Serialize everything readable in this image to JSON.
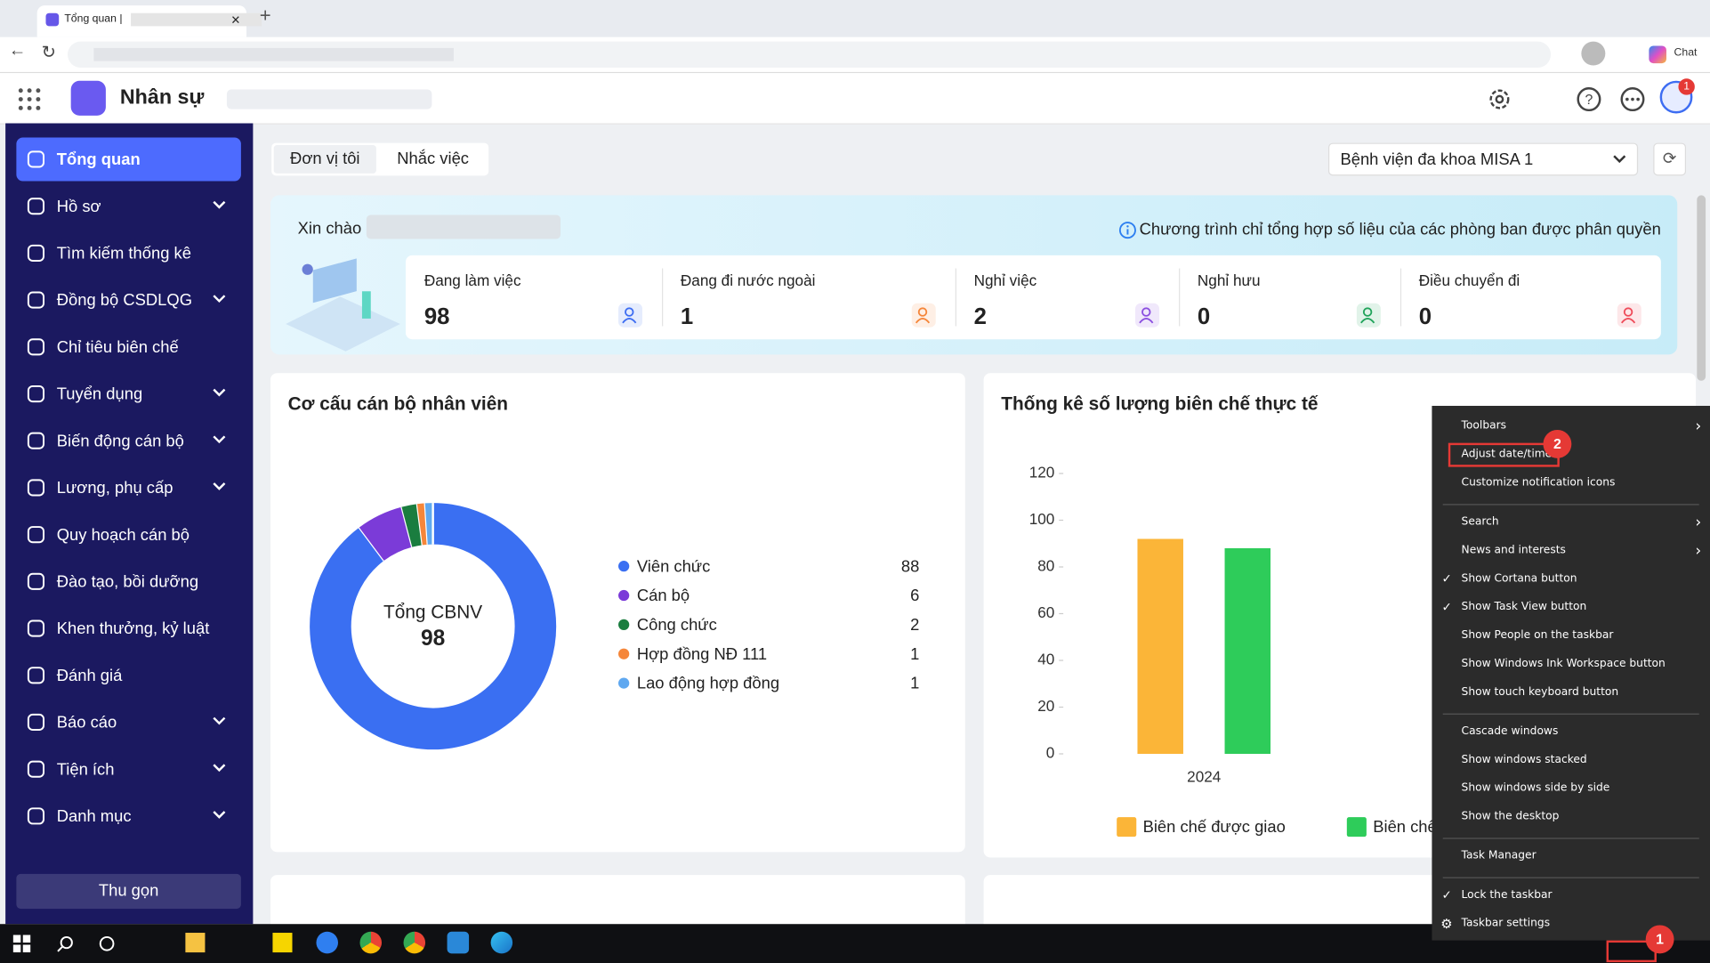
{
  "browser": {
    "tab_title": "Tổng quan |",
    "chat": "Chat"
  },
  "app": {
    "name": "Nhân sự",
    "notification_count": 1
  },
  "sidebar": {
    "items": [
      {
        "label": "Tổng quan",
        "submenu": false,
        "active": true
      },
      {
        "label": "Hồ sơ",
        "submenu": true
      },
      {
        "label": "Tìm kiếm thống kê",
        "submenu": false
      },
      {
        "label": "Đồng bộ CSDLQG",
        "submenu": true
      },
      {
        "label": "Chỉ tiêu biên chế",
        "submenu": false
      },
      {
        "label": "Tuyển dụng",
        "submenu": true
      },
      {
        "label": "Biến động cán bộ",
        "submenu": true
      },
      {
        "label": "Lương, phụ cấp",
        "submenu": true
      },
      {
        "label": "Quy hoạch cán bộ",
        "submenu": false
      },
      {
        "label": "Đào tạo, bồi dưỡng",
        "submenu": false
      },
      {
        "label": "Khen thưởng, kỷ luật",
        "submenu": false
      },
      {
        "label": "Đánh giá",
        "submenu": false
      },
      {
        "label": "Báo cáo",
        "submenu": true
      },
      {
        "label": "Tiện ích",
        "submenu": true
      },
      {
        "label": "Danh mục",
        "submenu": true
      }
    ],
    "collapse": "Thu gọn"
  },
  "tabs": [
    "Đơn vị tôi",
    "Nhắc việc"
  ],
  "unit_select": "Bệnh viện đa khoa MISA 1",
  "greeting": "Xin chào",
  "notice": "Chương trình chỉ tổng hợp số liệu của các phòng ban được phân quyền",
  "stats": [
    {
      "label": "Đang làm việc",
      "value": 98,
      "color": "#3d6df2"
    },
    {
      "label": "Đang đi nước ngoài",
      "value": 1,
      "color": "#f5863a"
    },
    {
      "label": "Nghỉ việc",
      "value": 2,
      "color": "#8b4fe0"
    },
    {
      "label": "Nghỉ hưu",
      "value": 0,
      "color": "#20a35a"
    },
    {
      "label": "Điều chuyển đi",
      "value": 0,
      "color": "#ef4c5a"
    }
  ],
  "chart_data": [
    {
      "type": "pie",
      "title": "Cơ cấu cán bộ nhân viên",
      "center_label": "Tổng CBNV",
      "center_value": 98,
      "categories": [
        "Viên chức",
        "Cán bộ",
        "Công chức",
        "Hợp đồng NĐ 111",
        "Lao động hợp đồng"
      ],
      "values": [
        88,
        6,
        2,
        1,
        1
      ],
      "colors": [
        "#3a6ff2",
        "#7b3bd8",
        "#1a7d3f",
        "#f5863a",
        "#5fa8f0"
      ]
    },
    {
      "type": "bar",
      "title": "Thống kê số lượng biên chế thực tế",
      "categories": [
        "2024"
      ],
      "series": [
        {
          "name": "Biên chế được giao",
          "color": "#fbb538",
          "values": [
            92
          ]
        },
        {
          "name": "Biên chế",
          "color": "#2ecc5a",
          "values": [
            88
          ]
        }
      ],
      "ylim": [
        0,
        120
      ],
      "yticks": [
        0,
        20,
        40,
        60,
        80,
        100,
        120
      ],
      "grid": false
    }
  ],
  "context_menu": {
    "groups": [
      [
        {
          "label": "Toolbars",
          "submenu": true
        },
        {
          "label": "Adjust date/time",
          "highlight": true
        },
        {
          "label": "Customize notification icons"
        }
      ],
      [
        {
          "label": "Search",
          "submenu": true
        },
        {
          "label": "News and interests",
          "submenu": true
        },
        {
          "label": "Show Cortana button",
          "checked": true
        },
        {
          "label": "Show Task View button",
          "checked": true
        },
        {
          "label": "Show People on the taskbar"
        },
        {
          "label": "Show Windows Ink Workspace button"
        },
        {
          "label": "Show touch keyboard button"
        }
      ],
      [
        {
          "label": "Cascade windows"
        },
        {
          "label": "Show windows stacked"
        },
        {
          "label": "Show windows side by side"
        },
        {
          "label": "Show the desktop"
        }
      ],
      [
        {
          "label": "Task Manager"
        }
      ],
      [
        {
          "label": "Lock the taskbar",
          "checked": true
        },
        {
          "label": "Taskbar settings",
          "gear": true
        }
      ]
    ]
  },
  "annotations": [
    "1",
    "2"
  ]
}
